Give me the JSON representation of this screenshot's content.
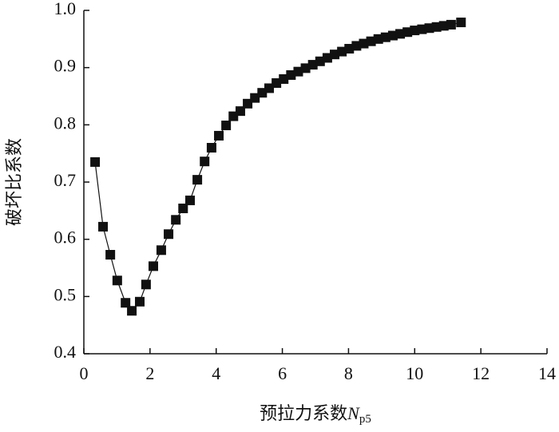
{
  "chart_data": {
    "type": "line",
    "xlabel_parts": [
      "预拉力系数",
      "N",
      "p5"
    ],
    "ylabel": "破坏比系数",
    "xlim": [
      0,
      14
    ],
    "xticks": [
      0,
      2,
      4,
      6,
      8,
      10,
      12,
      14
    ],
    "ylim": [
      0.4,
      1.0
    ],
    "yticks": [
      0.4,
      0.5,
      0.6,
      0.7,
      0.8,
      0.9,
      {
        "value": 1.0,
        "label": "1.0"
      }
    ],
    "marker": "square",
    "series": [
      {
        "color": "#111111",
        "x": [
          0.34,
          0.58,
          0.8,
          1.01,
          1.26,
          1.45,
          1.69,
          1.88,
          2.1,
          2.34,
          2.56,
          2.78,
          3.0,
          3.21,
          3.43,
          3.65,
          3.86,
          4.08,
          4.3,
          4.52,
          4.73,
          4.95,
          5.17,
          5.39,
          5.6,
          5.82,
          6.04,
          6.26,
          6.48,
          6.7,
          6.92,
          7.14,
          7.36,
          7.58,
          7.8,
          8.02,
          8.24,
          8.46,
          8.68,
          8.9,
          9.12,
          9.34,
          9.56,
          9.78,
          10.0,
          10.22,
          10.44,
          10.66,
          10.88,
          11.1,
          11.4
        ],
        "values": [
          0.735,
          0.622,
          0.573,
          0.528,
          0.489,
          0.475,
          0.491,
          0.521,
          0.553,
          0.581,
          0.609,
          0.634,
          0.654,
          0.668,
          0.704,
          0.736,
          0.76,
          0.781,
          0.799,
          0.815,
          0.824,
          0.837,
          0.847,
          0.856,
          0.864,
          0.873,
          0.88,
          0.887,
          0.893,
          0.899,
          0.905,
          0.911,
          0.917,
          0.923,
          0.928,
          0.933,
          0.938,
          0.942,
          0.946,
          0.95,
          0.953,
          0.956,
          0.959,
          0.962,
          0.965,
          0.967,
          0.969,
          0.971,
          0.973,
          0.975,
          0.979
        ]
      }
    ]
  }
}
